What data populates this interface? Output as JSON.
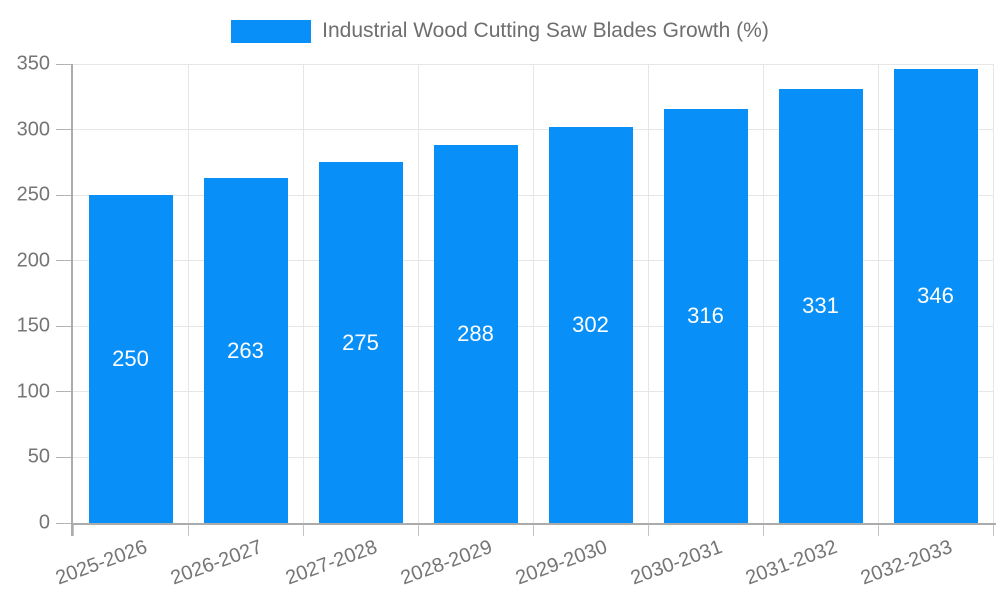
{
  "legend": {
    "label": "Industrial Wood Cutting Saw Blades Growth (%)",
    "swatch_color": "#0890f8"
  },
  "chart_data": {
    "type": "bar",
    "title": "Industrial Wood Cutting Saw Blades Growth (%)",
    "categories": [
      "2025-2026",
      "2026-2027",
      "2027-2028",
      "2028-2029",
      "2029-2030",
      "2030-2031",
      "2031-2032",
      "2032-2033"
    ],
    "values": [
      250,
      263,
      275,
      288,
      302,
      316,
      331,
      346
    ],
    "bar_labels": [
      "250",
      "263",
      "275",
      "288",
      "302",
      "316",
      "331",
      "346"
    ],
    "xlabel": "",
    "ylabel": "",
    "ylim": [
      0,
      350
    ],
    "yticks": [
      0,
      50,
      100,
      150,
      200,
      250,
      300,
      350
    ],
    "grid": true,
    "legend_position": "top",
    "colors": {
      "bar": "#0890f8",
      "bar_label": "#ffffff",
      "tick_text": "#757575",
      "legend_text": "#6e6e6e",
      "gridline": "#e6e6e6",
      "axis_line": "#ababab",
      "background": "#ffffff"
    }
  }
}
